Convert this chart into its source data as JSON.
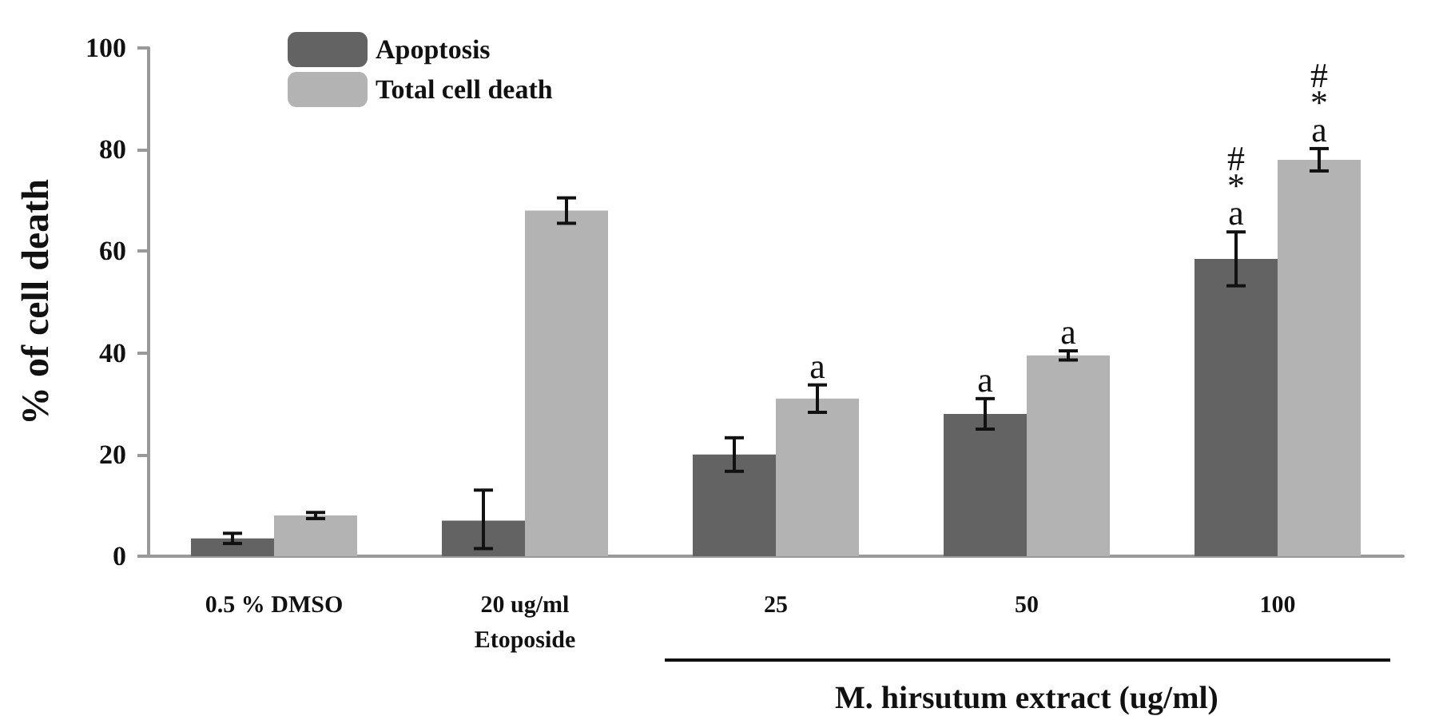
{
  "chart_data": {
    "type": "bar",
    "ylabel": "% of cell death",
    "xlabel": "M. hirsutum extract (ug/ml)",
    "categories": [
      "0.5 % DMSO",
      "20 ug/ml\nEtoposide",
      "25",
      "50",
      "100"
    ],
    "series": [
      {
        "name": "Apoptosis",
        "color": "#636363",
        "values": [
          3.5,
          7,
          20,
          28,
          58.5
        ],
        "errors": [
          1,
          [
            1.5,
            13
          ],
          3.3,
          3,
          5.3
        ]
      },
      {
        "name": "Total cell death",
        "color": "#b3b3b3",
        "values": [
          8,
          68,
          31,
          39.5,
          78
        ],
        "errors": [
          0.6,
          2.5,
          2.7,
          0.9,
          2.2
        ]
      }
    ],
    "ylim": [
      0,
      100
    ],
    "yticks": [
      0,
      20,
      40,
      60,
      80,
      100
    ],
    "grid": false,
    "legend": "top left",
    "annotations": [
      {
        "text": "a",
        "x": "25",
        "y": 31
      },
      {
        "text": "a",
        "x": "50",
        "y": 28
      },
      {
        "text": "a",
        "x": "50",
        "y": 39.5
      },
      {
        "text": "a",
        "x": "100",
        "y": 58.5
      },
      {
        "text": "*",
        "x": "100",
        "y": 58.5
      },
      {
        "text": "#",
        "x": "100",
        "y": 58.5
      },
      {
        "text": "a",
        "x": "100",
        "y": 78
      },
      {
        "text": "*",
        "x": "100",
        "y": 78
      },
      {
        "text": "#",
        "x": "100",
        "y": 78
      }
    ]
  }
}
